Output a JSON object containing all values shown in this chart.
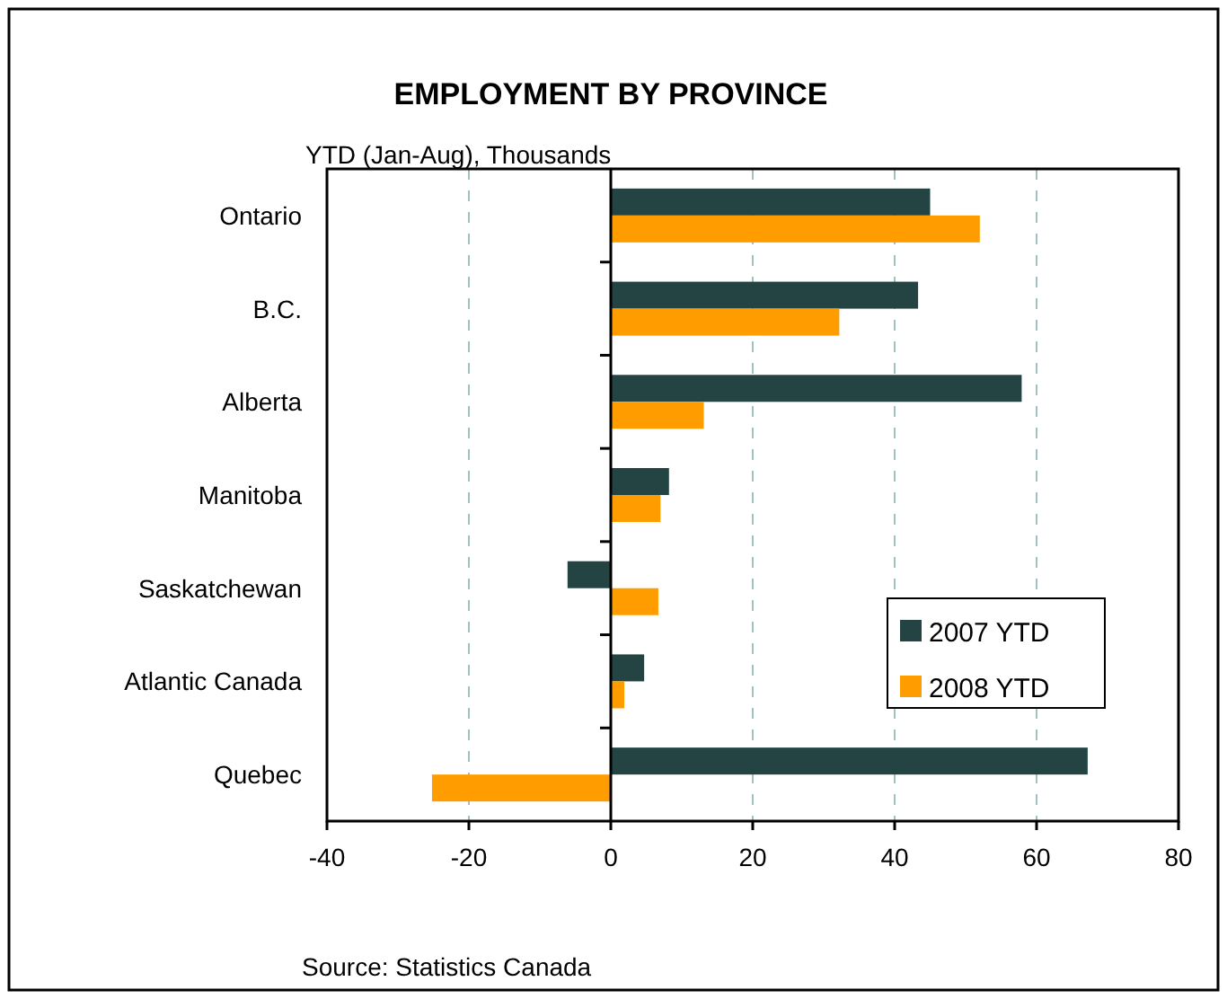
{
  "chart_data": {
    "type": "bar",
    "orientation": "horizontal",
    "title": "EMPLOYMENT BY PROVINCE",
    "subtitle": "YTD (Jan-Aug), Thousands",
    "categories": [
      "Ontario",
      "B.C.",
      "Alberta",
      "Manitoba",
      "Saskatchewan",
      "Atlantic Canada",
      "Quebec"
    ],
    "series": [
      {
        "name": "2007 YTD",
        "color": "#244343",
        "values": [
          45,
          43.3,
          57.9,
          8.2,
          -6.1,
          4.7,
          67.2
        ]
      },
      {
        "name": "2008 YTD",
        "color": "#ff9c00",
        "values": [
          52,
          32.2,
          13.1,
          7,
          6.7,
          1.9,
          -25.2
        ]
      }
    ],
    "xlim": [
      -40,
      80
    ],
    "xticks": [
      -40,
      -20,
      0,
      20,
      40,
      60,
      80
    ],
    "grid": "x",
    "legend": "bottom right",
    "annotations": [
      "Source: Statistics Canada"
    ]
  }
}
